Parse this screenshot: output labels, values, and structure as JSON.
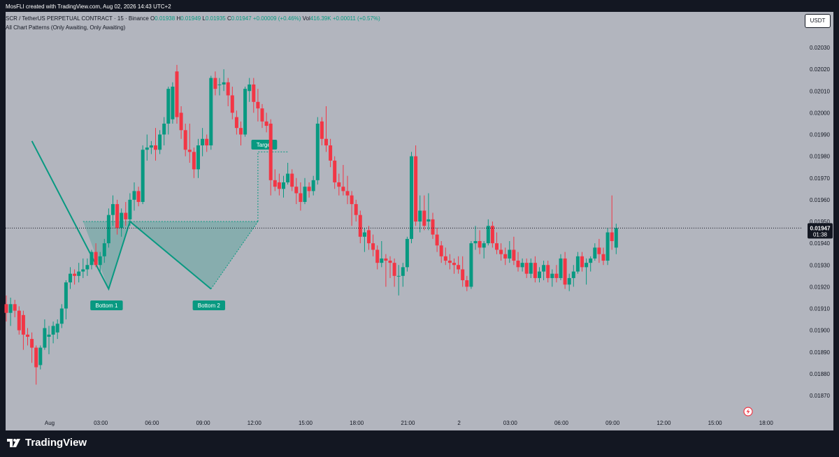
{
  "header": {
    "author_line": "MosFLI created with TradingView.com, Aug 02, 2026 14:43 UTC+2",
    "symbol": "SCR / TetherUS PERPETUAL CONTRACT · 15 · Binance",
    "open_label": "O",
    "open": "0.01938",
    "high_label": "H",
    "high": "0.01949",
    "low_label": "L",
    "low": "0.01935",
    "close_label": "C",
    "close": "0.01947",
    "change": "+0.00009 (+0.46%)",
    "vol_label": "Vol",
    "vol": "416.39K",
    "vol_change": "+0.00011 (+0.57%)",
    "indicator": "All Chart Patterns (Only Awaiting, Only Awaiting)"
  },
  "currency_button": "USDT",
  "brand": "TradingView",
  "colors": {
    "up": "#089981",
    "down": "#F23645",
    "background": "#B2B5BE",
    "frame": "#131722",
    "pattern": "#089981"
  },
  "chart_data": {
    "type": "candlestick",
    "ylim": [
      0.01865,
      0.02035
    ],
    "y_ticks": [
      "0.01870",
      "0.01880",
      "0.01890",
      "0.01900",
      "0.01910",
      "0.01920",
      "0.01930",
      "0.01940",
      "0.01950",
      "0.01960",
      "0.01970",
      "0.01980",
      "0.01990",
      "0.02000",
      "0.02010",
      "0.02020",
      "0.02030"
    ],
    "x_ticks": [
      "Aug",
      "03:00",
      "06:00",
      "09:00",
      "12:00",
      "15:00",
      "18:00",
      "21:00",
      "2",
      "03:00",
      "06:00",
      "09:00",
      "12:00",
      "15:00",
      "18:00"
    ],
    "x_tick_bars": [
      0,
      12,
      24,
      36,
      48,
      60,
      72,
      84,
      96,
      108,
      120,
      132,
      144,
      156,
      168
    ],
    "price_label": "0.01947",
    "countdown": "01:38",
    "last_price": 0.01947,
    "bars_count": 159,
    "candles": [
      [
        0.01912,
        0.01916,
        0.01904,
        0.01908
      ],
      [
        0.01908,
        0.01915,
        0.01902,
        0.01912
      ],
      [
        0.01912,
        0.01914,
        0.01906,
        0.01909
      ],
      [
        0.01909,
        0.01911,
        0.01898,
        0.019
      ],
      [
        0.01907,
        0.01909,
        0.01891,
        0.01898
      ],
      [
        0.01898,
        0.01901,
        0.01893,
        0.01897
      ],
      [
        0.01896,
        0.01899,
        0.01885,
        0.01892
      ],
      [
        0.01892,
        0.01893,
        0.01875,
        0.01883
      ],
      [
        0.01884,
        0.01893,
        0.01882,
        0.01892
      ],
      [
        0.01892,
        0.01905,
        0.01891,
        0.01901
      ],
      [
        0.01897,
        0.01902,
        0.01889,
        0.01898
      ],
      [
        0.01898,
        0.01904,
        0.01894,
        0.01902
      ],
      [
        0.01899,
        0.01905,
        0.01896,
        0.01903
      ],
      [
        0.01903,
        0.01912,
        0.01901,
        0.0191
      ],
      [
        0.0191,
        0.01923,
        0.01905,
        0.01922
      ],
      [
        0.01922,
        0.01929,
        0.01919,
        0.01926
      ],
      [
        0.01926,
        0.01928,
        0.01921,
        0.01925
      ],
      [
        0.01925,
        0.01931,
        0.01922,
        0.01927
      ],
      [
        0.01927,
        0.01933,
        0.01924,
        0.01928
      ],
      [
        0.01928,
        0.01933,
        0.01925,
        0.0193
      ],
      [
        0.0193,
        0.01937,
        0.01928,
        0.01936
      ],
      [
        0.01936,
        0.0194,
        0.01929,
        0.0193
      ],
      [
        0.0193,
        0.01936,
        0.01926,
        0.01934
      ],
      [
        0.01934,
        0.01942,
        0.01931,
        0.0194
      ],
      [
        0.0194,
        0.01956,
        0.01938,
        0.01953
      ],
      [
        0.01953,
        0.01962,
        0.01948,
        0.01958
      ],
      [
        0.01958,
        0.0196,
        0.01944,
        0.01947
      ],
      [
        0.01947,
        0.01956,
        0.01943,
        0.01954
      ],
      [
        0.01954,
        0.01959,
        0.01948,
        0.01951
      ],
      [
        0.01951,
        0.01963,
        0.01948,
        0.0196
      ],
      [
        0.0196,
        0.01968,
        0.01955,
        0.01964
      ],
      [
        0.01964,
        0.01966,
        0.01957,
        0.01959
      ],
      [
        0.01959,
        0.01985,
        0.01958,
        0.01983
      ],
      [
        0.01983,
        0.0199,
        0.01978,
        0.01984
      ],
      [
        0.01984,
        0.01987,
        0.01981,
        0.01985
      ],
      [
        0.01985,
        0.01993,
        0.01978,
        0.01983
      ],
      [
        0.01983,
        0.01992,
        0.01981,
        0.0199
      ],
      [
        0.0199,
        0.01998,
        0.01985,
        0.01995
      ],
      [
        0.01995,
        0.02012,
        0.0199,
        0.02011
      ],
      [
        0.01997,
        0.02014,
        0.01995,
        0.02012
      ],
      [
        0.02019,
        0.02022,
        0.01995,
        0.01998
      ],
      [
        0.02,
        0.02003,
        0.01988,
        0.01992
      ],
      [
        0.01992,
        0.01995,
        0.0198,
        0.01983
      ],
      [
        0.01983,
        0.01995,
        0.01977,
        0.01982
      ],
      [
        0.01982,
        0.01984,
        0.0197,
        0.01974
      ],
      [
        0.01974,
        0.01988,
        0.0197,
        0.01985
      ],
      [
        0.01985,
        0.01993,
        0.0198,
        0.01988
      ],
      [
        0.01988,
        0.0199,
        0.01982,
        0.01985
      ],
      [
        0.01985,
        0.02017,
        0.01983,
        0.02016
      ],
      [
        0.02016,
        0.02019,
        0.02008,
        0.02011
      ],
      [
        0.02013,
        0.02016,
        0.02008,
        0.02013
      ],
      [
        0.02013,
        0.0202,
        0.0201,
        0.02014
      ],
      [
        0.02014,
        0.02016,
        0.02003,
        0.02008
      ],
      [
        0.02008,
        0.02012,
        0.01997,
        0.02
      ],
      [
        0.01998,
        0.02001,
        0.0199,
        0.01993
      ],
      [
        0.01993,
        0.01996,
        0.01985,
        0.0199
      ],
      [
        0.0199,
        0.02012,
        0.01989,
        0.02011
      ],
      [
        0.0201,
        0.02016,
        0.02005,
        0.02013
      ],
      [
        0.02013,
        0.02016,
        0.02,
        0.02005
      ],
      [
        0.02005,
        0.02011,
        0.01996,
        0.02002
      ],
      [
        0.02002,
        0.02004,
        0.01993,
        0.01996
      ],
      [
        0.01996,
        0.02,
        0.01991,
        0.01994
      ],
      [
        0.01995,
        0.01997,
        0.01962,
        0.01969
      ],
      [
        0.01969,
        0.01974,
        0.01964,
        0.01966
      ],
      [
        0.01968,
        0.01972,
        0.01962,
        0.01965
      ],
      [
        0.01965,
        0.01971,
        0.01961,
        0.01968
      ],
      [
        0.01968,
        0.01977,
        0.01967,
        0.01972
      ],
      [
        0.01972,
        0.01974,
        0.01964,
        0.01966
      ],
      [
        0.01966,
        0.0197,
        0.01958,
        0.01963
      ],
      [
        0.01963,
        0.01968,
        0.01955,
        0.01959
      ],
      [
        0.01959,
        0.0197,
        0.01958,
        0.01966
      ],
      [
        0.01966,
        0.01968,
        0.01961,
        0.01964
      ],
      [
        0.01964,
        0.01971,
        0.01962,
        0.01969
      ],
      [
        0.01969,
        0.01998,
        0.01967,
        0.01995
      ],
      [
        0.01996,
        0.01998,
        0.01985,
        0.01988
      ],
      [
        0.01988,
        0.02003,
        0.01982,
        0.01985
      ],
      [
        0.01985,
        0.01988,
        0.01975,
        0.01978
      ],
      [
        0.01978,
        0.0198,
        0.01965,
        0.01968
      ],
      [
        0.01968,
        0.01972,
        0.01962,
        0.01966
      ],
      [
        0.01966,
        0.01976,
        0.01962,
        0.01964
      ],
      [
        0.01964,
        0.01971,
        0.01958,
        0.01962
      ],
      [
        0.01962,
        0.01964,
        0.01948,
        0.01958
      ],
      [
        0.01958,
        0.0196,
        0.0195,
        0.01953
      ],
      [
        0.01953,
        0.01955,
        0.0194,
        0.01943
      ],
      [
        0.01943,
        0.01947,
        0.01936,
        0.01945
      ],
      [
        0.01946,
        0.01948,
        0.01937,
        0.0194
      ],
      [
        0.0194,
        0.01944,
        0.01934,
        0.01937
      ],
      [
        0.01937,
        0.01939,
        0.01928,
        0.01931
      ],
      [
        0.01931,
        0.01941,
        0.01929,
        0.01933
      ],
      [
        0.01933,
        0.01935,
        0.0192,
        0.01932
      ],
      [
        0.01932,
        0.01934,
        0.01924,
        0.01931
      ],
      [
        0.01931,
        0.01933,
        0.0192,
        0.01925
      ],
      [
        0.01925,
        0.0193,
        0.01916,
        0.01925
      ],
      [
        0.01925,
        0.01931,
        0.0192,
        0.01929
      ],
      [
        0.01929,
        0.01943,
        0.01927,
        0.01942
      ],
      [
        0.01942,
        0.01982,
        0.0194,
        0.0198
      ],
      [
        0.0198,
        0.01985,
        0.01948,
        0.0195
      ],
      [
        0.0195,
        0.01962,
        0.01945,
        0.01955
      ],
      [
        0.01955,
        0.01962,
        0.01946,
        0.01948
      ],
      [
        0.0195,
        0.01963,
        0.01946,
        0.01951
      ],
      [
        0.01951,
        0.01954,
        0.01942,
        0.01944
      ],
      [
        0.01944,
        0.01947,
        0.01936,
        0.01939
      ],
      [
        0.01939,
        0.01941,
        0.01931,
        0.01934
      ],
      [
        0.01934,
        0.01938,
        0.0193,
        0.01932
      ],
      [
        0.01932,
        0.01935,
        0.01928,
        0.01931
      ],
      [
        0.01931,
        0.01933,
        0.01926,
        0.0193
      ],
      [
        0.0193,
        0.01934,
        0.01926,
        0.01928
      ],
      [
        0.01928,
        0.01934,
        0.0192,
        0.01923
      ],
      [
        0.01923,
        0.01925,
        0.01918,
        0.0192
      ],
      [
        0.0192,
        0.01941,
        0.01919,
        0.0194
      ],
      [
        0.0194,
        0.01948,
        0.01937,
        0.01941
      ],
      [
        0.01941,
        0.01946,
        0.01935,
        0.01938
      ],
      [
        0.01938,
        0.01941,
        0.01933,
        0.0194
      ],
      [
        0.0194,
        0.01951,
        0.01939,
        0.01948
      ],
      [
        0.01948,
        0.0195,
        0.01938,
        0.0194
      ],
      [
        0.0194,
        0.01945,
        0.01935,
        0.01937
      ],
      [
        0.01937,
        0.0194,
        0.01932,
        0.01935
      ],
      [
        0.01935,
        0.01938,
        0.0193,
        0.01933
      ],
      [
        0.01933,
        0.01941,
        0.01931,
        0.01937
      ],
      [
        0.01937,
        0.01943,
        0.0193,
        0.01932
      ],
      [
        0.01932,
        0.01936,
        0.01927,
        0.01929
      ],
      [
        0.01929,
        0.01933,
        0.01927,
        0.01931
      ],
      [
        0.01931,
        0.01933,
        0.01924,
        0.01926
      ],
      [
        0.01926,
        0.01933,
        0.01924,
        0.01931
      ],
      [
        0.01931,
        0.01934,
        0.01922,
        0.01924
      ],
      [
        0.01924,
        0.01929,
        0.01922,
        0.01927
      ],
      [
        0.01927,
        0.01932,
        0.01923,
        0.0193
      ],
      [
        0.0193,
        0.01932,
        0.01922,
        0.01924
      ],
      [
        0.01924,
        0.01928,
        0.0192,
        0.01926
      ],
      [
        0.01926,
        0.0193,
        0.01922,
        0.01924
      ],
      [
        0.01924,
        0.01935,
        0.01923,
        0.01933
      ],
      [
        0.01933,
        0.01936,
        0.01919,
        0.01921
      ],
      [
        0.01921,
        0.01926,
        0.01918,
        0.01924
      ],
      [
        0.01924,
        0.0193,
        0.0192,
        0.01927
      ],
      [
        0.01927,
        0.01936,
        0.01926,
        0.01934
      ],
      [
        0.01934,
        0.01936,
        0.01927,
        0.01929
      ],
      [
        0.01929,
        0.01933,
        0.01921,
        0.01931
      ],
      [
        0.01931,
        0.01934,
        0.01927,
        0.01933
      ],
      [
        0.01933,
        0.0194,
        0.01932,
        0.01938
      ],
      [
        0.01938,
        0.01942,
        0.01931,
        0.01935
      ],
      [
        0.01935,
        0.01938,
        0.0193,
        0.01932
      ],
      [
        0.01932,
        0.01947,
        0.0193,
        0.01945
      ],
      [
        0.01945,
        0.01962,
        0.01937,
        0.01941
      ],
      [
        0.01938,
        0.01949,
        0.01935,
        0.01947
      ]
    ],
    "pattern": {
      "name": "Double Bottom",
      "labels": [
        "Bottom 1",
        "Bottom 2",
        "Target"
      ],
      "neckline": 0.0195,
      "bottom1": 0.01919,
      "bottom2": 0.01919,
      "start_high": 0.01987,
      "target": 0.01982
    }
  }
}
